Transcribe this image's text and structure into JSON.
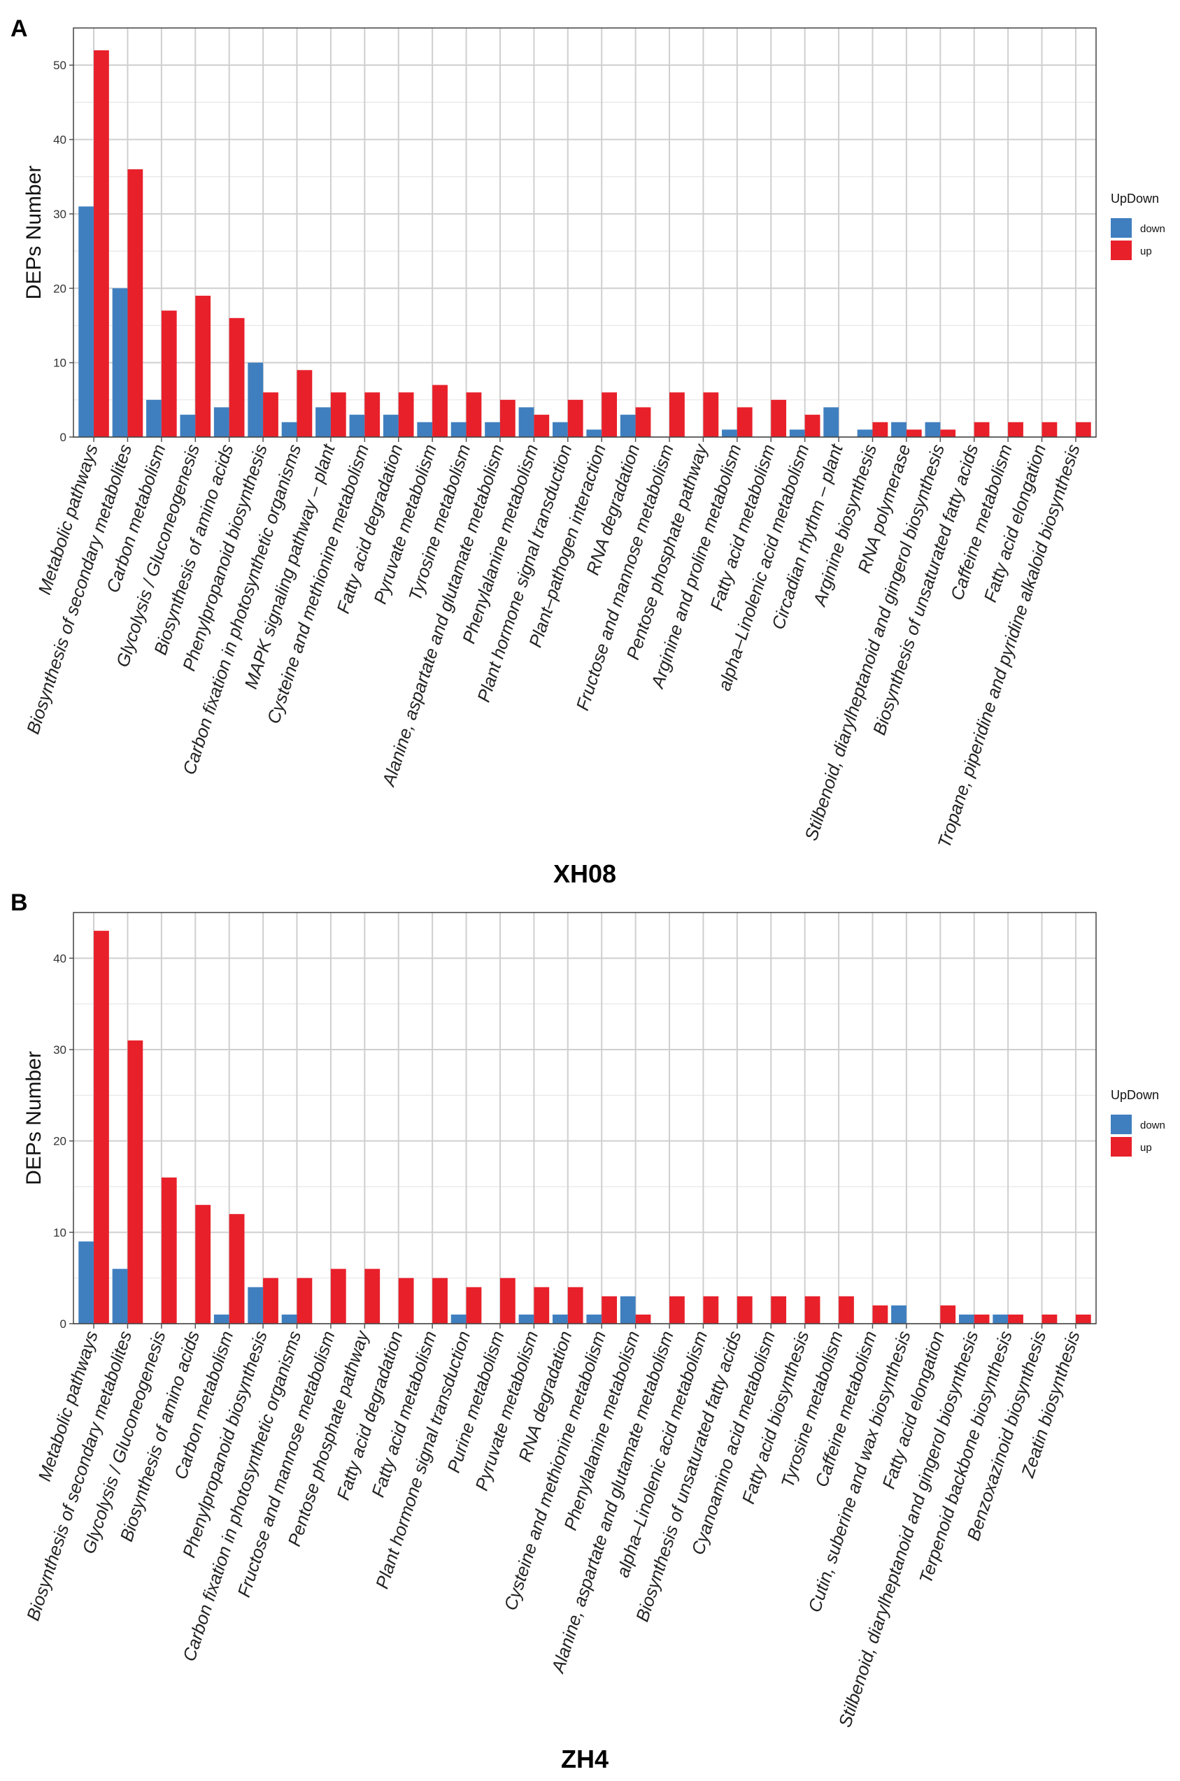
{
  "chart_data": [
    {
      "panel_label": "A",
      "type": "bar",
      "title": "XH08",
      "xlabel": "",
      "ylabel": "DEPs Number",
      "ylim": [
        0,
        55
      ],
      "yticks": [
        0,
        10,
        20,
        30,
        40,
        50
      ],
      "legend": {
        "title": "UpDown",
        "placement": "right"
      },
      "colors": {
        "down": "#3F7FBF",
        "up": "#E8202A"
      },
      "categories": [
        "Metabolic pathways",
        "Biosynthesis of secondary metabolites",
        "Carbon metabolism",
        "Glycolysis / Gluconeogenesis",
        "Biosynthesis of amino acids",
        "Phenylpropanoid biosynthesis",
        "Carbon fixation in photosynthetic organisms",
        "MAPK signaling pathway – plant",
        "Cysteine and methionine metabolism",
        "Fatty acid degradation",
        "Pyruvate metabolism",
        "Tyrosine metabolism",
        "Alanine, aspartate and glutamate metabolism",
        "Phenylalanine metabolism",
        "Plant hormone signal transduction",
        "Plant–pathogen interaction",
        "RNA degradation",
        "Fructose and mannose metabolism",
        "Pentose phosphate pathway",
        "Arginine and proline metabolism",
        "Fatty acid metabolism",
        "alpha–Linolenic acid metabolism",
        "Circadian rhythm – plant",
        "Arginine biosynthesis",
        "RNA polymerase",
        "Stilbenoid, diarylheptanoid and gingerol biosynthesis",
        "Biosynthesis of unsaturated fatty acids",
        "Caffeine metabolism",
        "Fatty acid elongation",
        "Tropane, piperidine and pyridine alkaloid biosynthesis"
      ],
      "series": [
        {
          "name": "down",
          "values": [
            31,
            20,
            5,
            3,
            4,
            10,
            2,
            4,
            3,
            3,
            2,
            2,
            2,
            4,
            2,
            1,
            3,
            0,
            0,
            1,
            0,
            1,
            4,
            1,
            2,
            2,
            0,
            0,
            0,
            0
          ]
        },
        {
          "name": "up",
          "values": [
            52,
            36,
            17,
            19,
            16,
            6,
            9,
            6,
            6,
            6,
            7,
            6,
            5,
            3,
            5,
            6,
            4,
            6,
            6,
            4,
            5,
            3,
            0,
            2,
            1,
            1,
            2,
            2,
            2,
            2
          ]
        }
      ]
    },
    {
      "panel_label": "B",
      "type": "bar",
      "title": "ZH4",
      "xlabel": "",
      "ylabel": "DEPs Number",
      "ylim": [
        0,
        45
      ],
      "yticks": [
        0,
        10,
        20,
        30,
        40
      ],
      "legend": {
        "title": "UpDown",
        "placement": "right"
      },
      "colors": {
        "down": "#3F7FBF",
        "up": "#E8202A"
      },
      "categories": [
        "Metabolic pathways",
        "Biosynthesis of secondary metabolites",
        "Glycolysis / Gluconeogenesis",
        "Biosynthesis of amino acids",
        "Carbon metabolism",
        "Phenylpropanoid biosynthesis",
        "Carbon fixation in photosynthetic organisms",
        "Fructose and mannose metabolism",
        "Pentose phosphate pathway",
        "Fatty acid degradation",
        "Fatty acid metabolism",
        "Plant hormone signal transduction",
        "Purine metabolism",
        "Pyruvate metabolism",
        "RNA degradation",
        "Cysteine and methionine metabolism",
        "Phenylalanine metabolism",
        "Alanine, aspartate and glutamate metabolism",
        "alpha–Linolenic acid metabolism",
        "Biosynthesis of unsaturated fatty acids",
        "Cyanoamino acid metabolism",
        "Fatty acid biosynthesis",
        "Tyrosine metabolism",
        "Caffeine metabolism",
        "Cutin, suberine and wax biosynthesis",
        "Fatty acid elongation",
        "Stilbenoid, diarylheptanoid and gingerol biosynthesis",
        "Terpenoid backbone biosynthesis",
        "Benzoxazinoid biosynthesis",
        "Zeatin biosynthesis"
      ],
      "series": [
        {
          "name": "down",
          "values": [
            9,
            6,
            0,
            0,
            1,
            4,
            1,
            0,
            0,
            0,
            0,
            1,
            0,
            1,
            1,
            1,
            3,
            0,
            0,
            0,
            0,
            0,
            0,
            0,
            2,
            0,
            1,
            1,
            0,
            0
          ]
        },
        {
          "name": "up",
          "values": [
            43,
            31,
            16,
            13,
            12,
            5,
            5,
            6,
            6,
            5,
            5,
            4,
            5,
            4,
            4,
            3,
            1,
            3,
            3,
            3,
            3,
            3,
            3,
            2,
            0,
            2,
            1,
            1,
            1,
            1
          ]
        }
      ]
    }
  ]
}
